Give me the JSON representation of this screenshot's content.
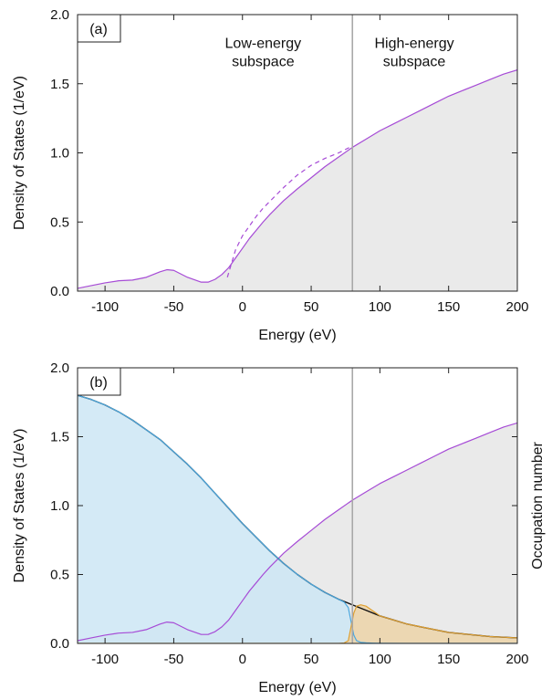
{
  "chart_data": [
    {
      "type": "area",
      "panel_label": "(a)",
      "xlabel": "Energy (eV)",
      "ylabel": "Density of States (1/eV)",
      "xlim": [
        -120,
        200
      ],
      "ylim": [
        0,
        2.0
      ],
      "xticks": [
        -100,
        -50,
        0,
        50,
        100,
        150,
        200
      ],
      "yticks": [
        0.0,
        0.5,
        1.0,
        1.5,
        2.0
      ],
      "ytick_labels": [
        "0.0",
        "0.5",
        "1.0",
        "1.5",
        "2.0"
      ],
      "vertical_line_x": 80,
      "annotations": [
        {
          "lines": [
            "Low-energy",
            "subspace"
          ],
          "x": 15,
          "y": 1.76
        },
        {
          "lines": [
            "High-energy",
            "subspace"
          ],
          "x": 125,
          "y": 1.76
        }
      ],
      "series": [
        {
          "style": "solid-filled",
          "color": "#a64bd6",
          "fill": "#e6e6e6",
          "x": [
            -120,
            -110,
            -100,
            -90,
            -80,
            -70,
            -60,
            -55,
            -50,
            -40,
            -30,
            -25,
            -20,
            -15,
            -10,
            -5,
            0,
            5,
            10,
            15,
            20,
            30,
            40,
            50,
            60,
            70,
            80,
            90,
            100,
            110,
            120,
            130,
            140,
            150,
            160,
            170,
            180,
            190,
            200
          ],
          "y": [
            0.02,
            0.04,
            0.06,
            0.075,
            0.08,
            0.1,
            0.14,
            0.155,
            0.15,
            0.1,
            0.065,
            0.065,
            0.085,
            0.12,
            0.17,
            0.24,
            0.31,
            0.38,
            0.44,
            0.5,
            0.555,
            0.655,
            0.74,
            0.82,
            0.9,
            0.97,
            1.04,
            1.1,
            1.16,
            1.21,
            1.26,
            1.31,
            1.36,
            1.41,
            1.45,
            1.49,
            1.53,
            1.57,
            1.6
          ]
        },
        {
          "style": "dashed",
          "color": "#a64bd6",
          "x": [
            -11,
            -8,
            -5,
            0,
            5,
            10,
            15,
            20,
            30,
            40,
            50,
            60,
            70,
            80
          ],
          "y": [
            0.1,
            0.2,
            0.3,
            0.4,
            0.47,
            0.54,
            0.6,
            0.65,
            0.75,
            0.84,
            0.91,
            0.96,
            1.0,
            1.05
          ]
        }
      ]
    },
    {
      "type": "area",
      "panel_label": "(b)",
      "xlabel": "Energy (eV)",
      "ylabel": "Density of States (1/eV)",
      "ylabel_right": "Occupation number",
      "xlim": [
        -120,
        200
      ],
      "ylim": [
        0,
        2.0
      ],
      "xticks": [
        -100,
        -50,
        0,
        50,
        100,
        150,
        200
      ],
      "yticks": [
        0.0,
        0.5,
        1.0,
        1.5,
        2.0
      ],
      "ytick_labels": [
        "0.0",
        "0.5",
        "1.0",
        "1.5",
        "2.0"
      ],
      "vertical_line_x": 80,
      "series": [
        {
          "style": "solid-filled",
          "color": "#a64bd6",
          "fill": "#e6e6e6",
          "x": [
            -120,
            -110,
            -100,
            -90,
            -80,
            -70,
            -60,
            -55,
            -50,
            -40,
            -30,
            -25,
            -20,
            -15,
            -10,
            -5,
            0,
            5,
            10,
            15,
            20,
            30,
            40,
            50,
            60,
            70,
            80,
            90,
            100,
            110,
            120,
            130,
            140,
            150,
            160,
            170,
            180,
            190,
            200
          ],
          "y": [
            0.02,
            0.04,
            0.06,
            0.075,
            0.08,
            0.1,
            0.14,
            0.155,
            0.15,
            0.1,
            0.065,
            0.065,
            0.085,
            0.12,
            0.17,
            0.24,
            0.31,
            0.38,
            0.44,
            0.5,
            0.555,
            0.655,
            0.74,
            0.82,
            0.9,
            0.97,
            1.04,
            1.1,
            1.16,
            1.21,
            1.26,
            1.31,
            1.36,
            1.41,
            1.45,
            1.49,
            1.53,
            1.57,
            1.6
          ]
        },
        {
          "style": "solid",
          "color": "#111111",
          "x": [
            -120,
            -110,
            -100,
            -90,
            -80,
            -70,
            -60,
            -50,
            -40,
            -30,
            -20,
            -10,
            0,
            10,
            20,
            30,
            40,
            50,
            60,
            70,
            80,
            90,
            100,
            110,
            120,
            130,
            140,
            150,
            160,
            170,
            180,
            190,
            200
          ],
          "y": [
            1.8,
            1.77,
            1.73,
            1.68,
            1.62,
            1.55,
            1.48,
            1.39,
            1.3,
            1.2,
            1.09,
            0.98,
            0.87,
            0.77,
            0.67,
            0.58,
            0.5,
            0.43,
            0.37,
            0.32,
            0.28,
            0.24,
            0.2,
            0.17,
            0.14,
            0.12,
            0.1,
            0.08,
            0.07,
            0.06,
            0.05,
            0.045,
            0.04
          ]
        },
        {
          "style": "solid-filled",
          "color": "#4aa8e0",
          "fill": "#cde6f5",
          "x": [
            -120,
            -110,
            -100,
            -90,
            -80,
            -70,
            -60,
            -50,
            -40,
            -30,
            -20,
            -10,
            0,
            10,
            20,
            30,
            40,
            50,
            60,
            70,
            74,
            77,
            79,
            81,
            83,
            86,
            90,
            95,
            100,
            120,
            140,
            160,
            180,
            200
          ],
          "y": [
            1.8,
            1.77,
            1.73,
            1.68,
            1.62,
            1.55,
            1.48,
            1.39,
            1.3,
            1.2,
            1.09,
            0.98,
            0.87,
            0.77,
            0.67,
            0.58,
            0.5,
            0.43,
            0.37,
            0.32,
            0.3,
            0.26,
            0.16,
            0.06,
            0.02,
            0.008,
            0.004,
            0.002,
            0.001,
            0,
            0,
            0,
            0,
            0
          ]
        },
        {
          "style": "solid-filled",
          "color": "#e0a030",
          "fill": "#ecd3a8",
          "x": [
            -120,
            -50,
            0,
            50,
            70,
            74,
            77,
            79,
            81,
            83,
            86,
            90,
            95,
            100,
            110,
            120,
            130,
            140,
            150,
            160,
            170,
            180,
            190,
            200
          ],
          "y": [
            0,
            0,
            0,
            0,
            0,
            0.003,
            0.02,
            0.12,
            0.22,
            0.27,
            0.28,
            0.27,
            0.235,
            0.2,
            0.17,
            0.14,
            0.12,
            0.1,
            0.08,
            0.07,
            0.06,
            0.05,
            0.045,
            0.04
          ]
        }
      ]
    }
  ]
}
